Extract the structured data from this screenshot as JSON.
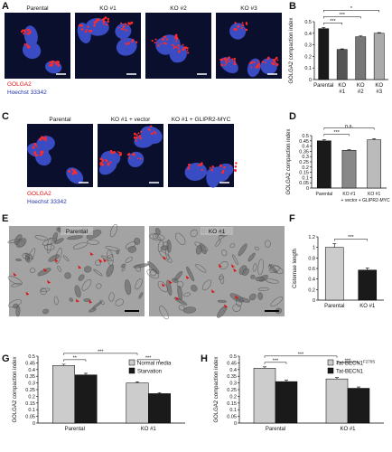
{
  "figure": {
    "panel_a": {
      "label": "A",
      "images": [
        "Parental",
        "KO #1",
        "KO #2",
        "KO #3"
      ],
      "legend": [
        "GOLGA2",
        "Hoechst 33342"
      ]
    },
    "panel_c": {
      "label": "C",
      "images": [
        "Parental",
        "KO #1 + vector",
        "KO #1 + GLIPR2-MYC"
      ],
      "legend": [
        "GOLGA2",
        "Hoechst 33342"
      ]
    },
    "panel_e": {
      "label": "E",
      "images": [
        "Parental",
        "KO #1"
      ]
    }
  },
  "chart_data": [
    {
      "label": "B",
      "type": "bar",
      "ylabel": "GOLGA2 compaction index",
      "categories": [
        "Parental",
        "KO\n#1",
        "KO\n#2",
        "KO\n#3"
      ],
      "values": [
        0.44,
        0.26,
        0.37,
        0.4
      ],
      "errors": [
        0.01,
        0.005,
        0.008,
        0.006
      ],
      "colors": [
        "#1a1a1a",
        "#555555",
        "#777777",
        "#aaaaaa"
      ],
      "ylim": [
        0,
        0.5
      ],
      "yticks": [
        0,
        0.1,
        0.2,
        0.3,
        0.4,
        0.5
      ],
      "annotations": [
        "***",
        "***",
        "*"
      ]
    },
    {
      "label": "D",
      "type": "bar",
      "ylabel": "GOLGA2 compaction index",
      "categories": [
        "Parental",
        "KO #1\n+ vector",
        "KO #1\n+ GLIPR2-MYC"
      ],
      "values": [
        0.45,
        0.36,
        0.46
      ],
      "errors": [
        0.01,
        0.005,
        0.01
      ],
      "colors": [
        "#1a1a1a",
        "#888888",
        "#bbbbbb"
      ],
      "ylim": [
        0,
        0.5
      ],
      "yticks": [
        0,
        0.05,
        0.1,
        0.15,
        0.2,
        0.25,
        0.3,
        0.35,
        0.4,
        0.45,
        0.5
      ],
      "annotations": [
        "***",
        "n.s."
      ]
    },
    {
      "label": "F",
      "type": "bar",
      "ylabel": "Cisternae length",
      "categories": [
        "Parental",
        "KO #1"
      ],
      "values": [
        1.0,
        0.57
      ],
      "errors": [
        0.07,
        0.04
      ],
      "colors": [
        "#cccccc",
        "#1a1a1a"
      ],
      "ylim": [
        0,
        1.2
      ],
      "yticks": [
        0,
        0.2,
        0.4,
        0.6,
        0.8,
        1,
        1.2
      ],
      "annotations": [
        "***"
      ]
    },
    {
      "label": "G",
      "type": "grouped_bar",
      "ylabel": "GOLGA2 compaction index",
      "categories": [
        "Parental",
        "KO #1"
      ],
      "series": [
        {
          "name": "Normal media",
          "color": "#cccccc",
          "values": [
            0.43,
            0.3
          ],
          "errors": [
            0.01,
            0.008
          ]
        },
        {
          "name": "Starvation",
          "color": "#1a1a1a",
          "values": [
            0.36,
            0.22
          ],
          "errors": [
            0.012,
            0.008
          ]
        }
      ],
      "ylim": [
        0,
        0.5
      ],
      "yticks": [
        0,
        0.05,
        0.1,
        0.15,
        0.2,
        0.25,
        0.3,
        0.35,
        0.4,
        0.45,
        0.5
      ],
      "annotations": [
        "**",
        "***",
        "***"
      ]
    },
    {
      "label": "H",
      "type": "grouped_bar",
      "ylabel": "GOLGA2 compaction index",
      "categories": [
        "Parental",
        "KO #1"
      ],
      "series": [
        {
          "name": "Tat-BECN1",
          "superscript": "F270S",
          "color": "#cccccc",
          "values": [
            0.41,
            0.33
          ],
          "errors": [
            0.01,
            0.01
          ]
        },
        {
          "name": "Tat-BECN1",
          "color": "#1a1a1a",
          "values": [
            0.31,
            0.26
          ],
          "errors": [
            0.01,
            0.01
          ]
        }
      ],
      "ylim": [
        0,
        0.5
      ],
      "yticks": [
        0,
        0.05,
        0.1,
        0.15,
        0.2,
        0.25,
        0.3,
        0.35,
        0.4,
        0.45,
        0.5
      ],
      "annotations": [
        "***",
        "***",
        "***"
      ]
    }
  ]
}
